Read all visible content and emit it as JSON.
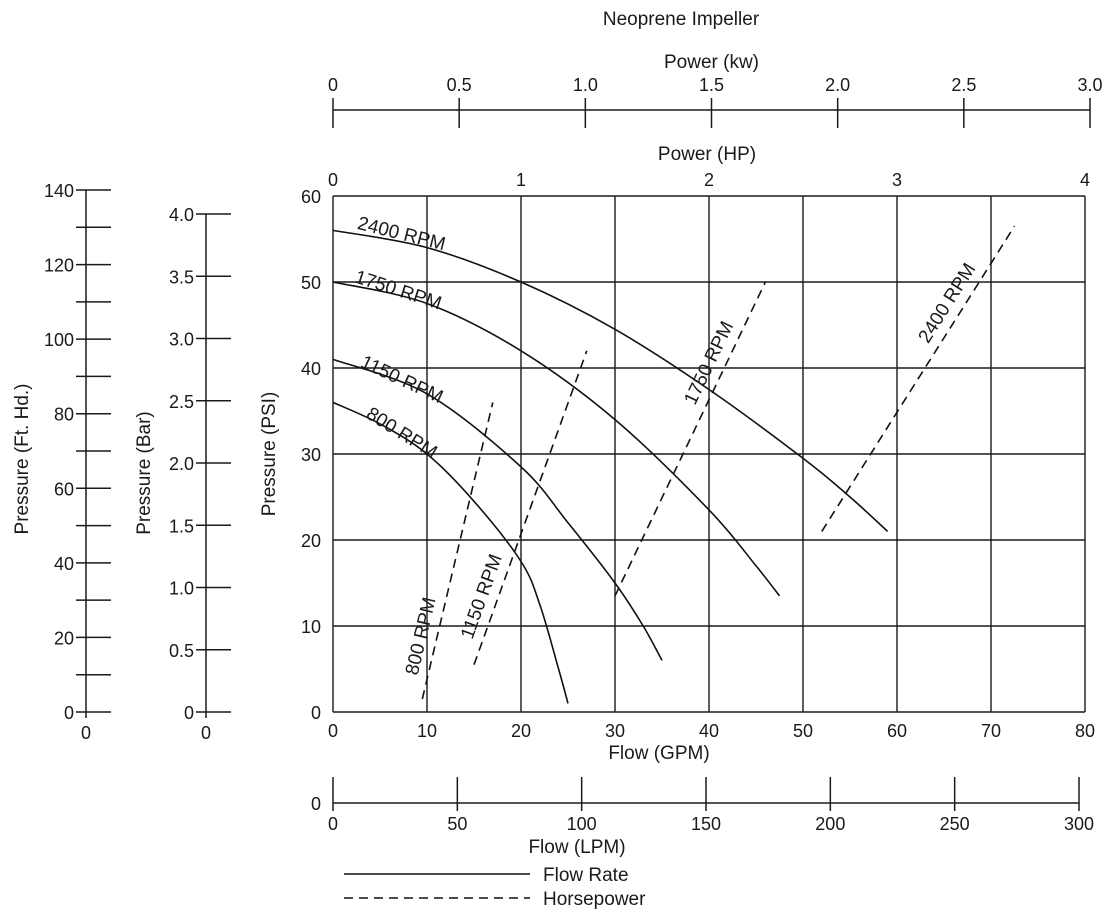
{
  "chart_data": {
    "type": "line",
    "title": "Neoprene Impeller",
    "x_axis": {
      "label": "Flow (GPM)",
      "range": [
        0,
        80
      ],
      "ticks": [
        "0",
        "10",
        "20",
        "30",
        "40",
        "50",
        "60",
        "70",
        "80"
      ]
    },
    "y_axis": {
      "label": "Pressure (PSI)",
      "range": [
        0,
        60
      ],
      "ticks": [
        "0",
        "10",
        "20",
        "30",
        "40",
        "50",
        "60"
      ]
    },
    "secondary_axes": {
      "power_kw": {
        "label": "Power (kw)",
        "range": [
          0,
          3
        ],
        "ticks": [
          "0",
          "0.5",
          "1.0",
          "1.5",
          "2.0",
          "2.5",
          "3.0"
        ]
      },
      "power_hp": {
        "label": "Power (HP)",
        "range": [
          0,
          4
        ],
        "ticks": [
          "0",
          "1",
          "2",
          "3",
          "4"
        ]
      },
      "pressure_ft_hd": {
        "label": "Pressure (Ft. Hd.)",
        "range": [
          0,
          140
        ],
        "ticks": [
          "0",
          "20",
          "40",
          "60",
          "80",
          "100",
          "120",
          "140"
        ],
        "origin_label": "0"
      },
      "pressure_bar": {
        "label": "Pressure (Bar)",
        "range": [
          0,
          4
        ],
        "ticks": [
          "0",
          "0.5",
          "1.0",
          "1.5",
          "2.0",
          "2.5",
          "3.0",
          "3.5",
          "4.0"
        ],
        "origin_label": "0"
      },
      "flow_lpm": {
        "label": "Flow (LPM)",
        "range": [
          0,
          300
        ],
        "ticks": [
          "0",
          "50",
          "100",
          "150",
          "200",
          "250",
          "300"
        ],
        "zero_label": "0"
      }
    },
    "grid": true,
    "flow_rate_series": [
      {
        "name": "2400 RPM",
        "x": [
          0,
          10,
          20,
          30,
          40,
          50,
          55,
          59
        ],
        "y": [
          56,
          54,
          50,
          44.5,
          37.5,
          29.5,
          25,
          21
        ]
      },
      {
        "name": "1750 RPM",
        "x": [
          0,
          10,
          20,
          30,
          40,
          45,
          47.5
        ],
        "y": [
          50,
          47.5,
          42,
          34,
          23.5,
          17,
          13.5
        ]
      },
      {
        "name": "1150 RPM",
        "x": [
          0,
          10,
          20,
          25,
          30,
          33,
          35
        ],
        "y": [
          41,
          37,
          28.5,
          22,
          15,
          10,
          6
        ]
      },
      {
        "name": "800 RPM",
        "x": [
          0,
          5,
          10,
          15,
          20,
          22,
          24,
          25
        ],
        "y": [
          36,
          33.5,
          30,
          24.5,
          17.5,
          12.5,
          5,
          1
        ]
      }
    ],
    "horsepower_series": [
      {
        "name": "800 RPM",
        "x": [
          9.5,
          17
        ],
        "y": [
          1.5,
          36
        ]
      },
      {
        "name": "1150 RPM",
        "x": [
          15,
          27
        ],
        "y": [
          5.5,
          42
        ]
      },
      {
        "name": "1750 RPM",
        "x": [
          30,
          46
        ],
        "y": [
          13.5,
          50
        ]
      },
      {
        "name": "2400 RPM",
        "x": [
          52,
          72.5
        ],
        "y": [
          21,
          56.5
        ]
      }
    ],
    "legend": {
      "placement": "bottom",
      "entries": [
        {
          "label": "Flow Rate",
          "style": "solid"
        },
        {
          "label": "Horsepower",
          "style": "dashed"
        }
      ]
    }
  }
}
